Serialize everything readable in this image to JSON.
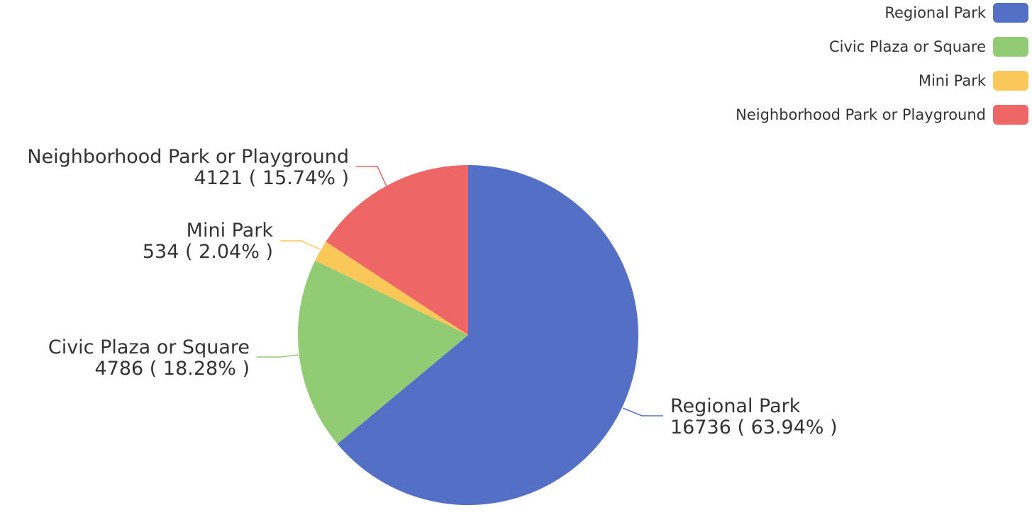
{
  "chart_data": {
    "type": "pie",
    "title": "",
    "legend_position": "top-right",
    "series": [
      {
        "slices": [
          {
            "name": "Regional Park",
            "value": 16736,
            "percent_label": "63.94%",
            "color": "#5470c6"
          },
          {
            "name": "Civic Plaza or Square",
            "value": 4786,
            "percent_label": "18.28%",
            "color": "#91cc75"
          },
          {
            "name": "Mini Park",
            "value": 534,
            "percent_label": "2.04%",
            "color": "#fac858"
          },
          {
            "name": "Neighborhood Park or Playground",
            "value": 4121,
            "percent_label": "15.74%",
            "color": "#ee6666"
          }
        ]
      }
    ],
    "legend": [
      "Regional Park",
      "Civic Plaza or Square",
      "Mini Park",
      "Neighborhood Park or Playground"
    ]
  }
}
